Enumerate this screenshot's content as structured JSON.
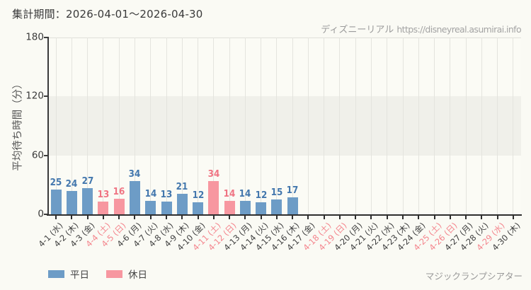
{
  "header": {
    "title": "集計期間：2026-04-01～2026-04-30"
  },
  "watermark": {
    "site_name": "ディズニーリアル",
    "site_url": "https://disneyreal.asumirai.info"
  },
  "footer": {
    "attraction_name": "マジックランプシアター"
  },
  "legend": {
    "items": [
      {
        "label": "平日",
        "type": "weekday"
      },
      {
        "label": "休日",
        "type": "holiday"
      }
    ]
  },
  "chart_data": {
    "type": "bar",
    "title": "集計期間：2026-04-01～2026-04-30",
    "xlabel": "",
    "ylabel": "平均待ち時間（分）",
    "ylim": [
      0,
      180
    ],
    "yticks": [
      0,
      60,
      120,
      180
    ],
    "grid": "vertical gridlines per category; shaded horizontal band between 60 and 120",
    "legend_position": "bottom-left",
    "categories": [
      "4-1 (水)",
      "4-2 (木)",
      "4-3 (金)",
      "4-4 (土)",
      "4-5 (日)",
      "4-6 (月)",
      "4-7 (火)",
      "4-8 (水)",
      "4-9 (木)",
      "4-10 (金)",
      "4-11 (土)",
      "4-12 (日)",
      "4-13 (月)",
      "4-14 (火)",
      "4-15 (水)",
      "4-16 (木)",
      "4-17 (金)",
      "4-18 (土)",
      "4-19 (日)",
      "4-20 (月)",
      "4-21 (火)",
      "4-22 (水)",
      "4-23 (木)",
      "4-24 (金)",
      "4-25 (土)",
      "4-26 (日)",
      "4-27 (月)",
      "4-28 (火)",
      "4-29 (水)",
      "4-30 (木)"
    ],
    "values": [
      25,
      24,
      27,
      13,
      16,
      34,
      14,
      13,
      21,
      12,
      34,
      14,
      14,
      12,
      15,
      17,
      null,
      null,
      null,
      null,
      null,
      null,
      null,
      null,
      null,
      null,
      null,
      null,
      null,
      null
    ],
    "day_types": [
      "weekday",
      "weekday",
      "weekday",
      "holiday",
      "holiday",
      "weekday",
      "weekday",
      "weekday",
      "weekday",
      "weekday",
      "holiday",
      "holiday",
      "weekday",
      "weekday",
      "weekday",
      "weekday",
      "weekday",
      "holiday",
      "holiday",
      "weekday",
      "weekday",
      "weekday",
      "weekday",
      "weekday",
      "holiday",
      "holiday",
      "weekday",
      "weekday",
      "holiday",
      "weekday"
    ],
    "colors": {
      "weekday_bar": "#6d9cc6",
      "holiday_bar": "#f797a0",
      "weekday_value_label": "#4377ad",
      "holiday_value_label": "#ef7483",
      "weekday_tick_label": "#3f3f3f",
      "holiday_tick_label": "#f4848c"
    }
  }
}
